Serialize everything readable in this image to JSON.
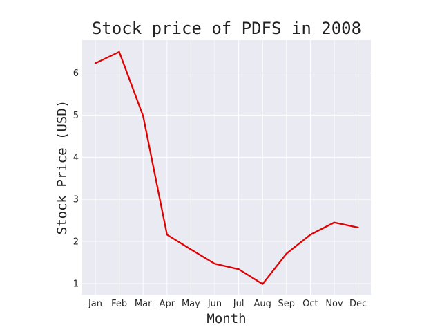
{
  "chart_data": {
    "type": "line",
    "title": "Stock price of PDFS in 2008",
    "xlabel": "Month",
    "ylabel": "Stock Price (USD)",
    "categories": [
      "Jan",
      "Feb",
      "Mar",
      "Apr",
      "May",
      "Jun",
      "Jul",
      "Aug",
      "Sep",
      "Oct",
      "Nov",
      "Dec"
    ],
    "series": [
      {
        "values": [
          6.23,
          6.5,
          4.98,
          2.16,
          1.81,
          1.47,
          1.34,
          0.99,
          1.71,
          2.16,
          2.45,
          2.33
        ]
      }
    ],
    "ylim": [
      0.72,
      6.78
    ],
    "yticks": [
      1,
      2,
      3,
      4,
      5,
      6
    ],
    "grid": true,
    "line_color": "#e00000",
    "plot_background": "#eaeaf2",
    "grid_color": "#ffffff"
  }
}
